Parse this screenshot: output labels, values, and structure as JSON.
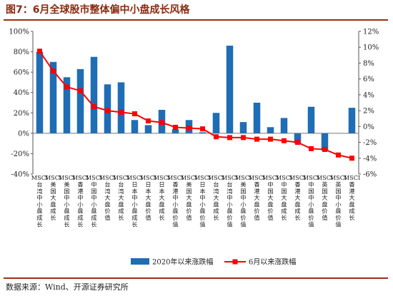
{
  "title": "图7：6月全球股市整体偏中小盘成长风格",
  "source": "数据来源：Wind、开源证券研究所",
  "chart_data": {
    "type": "bar+line",
    "categories": [
      "MSCI台湾中小盘成长",
      "MSCI美国大盘成长",
      "MSCI美国中小盘成长",
      "MSCI香港中小盘成长",
      "MSCI中国中小盘成长",
      "MSCI台湾大盘价值",
      "MSCI台湾大盘成长",
      "MSCI日本中小盘成长",
      "MSCI日本大盘价值",
      "MSCI日本大盘成长",
      "MSCI香港中小盘价值",
      "MSCI美国大盘价值",
      "MSCI日本中小盘价值",
      "MSCI台湾大盘成长",
      "MSCI台湾中小盘价值",
      "MSCI美国中小盘价值",
      "MSCI香港大盘价值",
      "MSCI中国大盘价值",
      "MSCI中国大盘成长",
      "MSCI香港大盘成长",
      "MSCI中国中小盘价值",
      "MSCI英国大盘价值",
      "MSCI英国中小盘价值",
      "MSCI香港大盘成长"
    ],
    "series": [
      {
        "name": "2020年以来涨跌幅",
        "axis": "left",
        "type": "bar",
        "color": "#1f6db5",
        "values": [
          80,
          70,
          55,
          63,
          75,
          48,
          50,
          13,
          8,
          23,
          4,
          13,
          1,
          20,
          86,
          11,
          30,
          6,
          15,
          -10,
          26,
          -17,
          0,
          25
        ]
      },
      {
        "name": "6月以来涨跌幅",
        "axis": "right",
        "type": "line",
        "color": "#ff0000",
        "values": [
          9.5,
          7.0,
          5.0,
          4.5,
          2.5,
          2.0,
          1.8,
          1.6,
          0.7,
          0.5,
          -0.1,
          -0.2,
          -0.3,
          -1.3,
          -1.4,
          -1.4,
          -1.6,
          -1.6,
          -1.8,
          -2.0,
          -2.8,
          -2.9,
          -3.6,
          -4.0
        ]
      }
    ],
    "left_axis": {
      "min": -40,
      "max": 100,
      "step": 20,
      "ticks": [
        "-40%",
        "-20%",
        "0%",
        "20%",
        "40%",
        "60%",
        "80%",
        "100%"
      ]
    },
    "right_axis": {
      "min": -6,
      "max": 12,
      "step": 2,
      "ticks": [
        "-6%",
        "-4%",
        "-2%",
        "0%",
        "2%",
        "4%",
        "6%",
        "8%",
        "10%",
        "12%"
      ]
    },
    "legend_position": "bottom",
    "grid": false
  }
}
